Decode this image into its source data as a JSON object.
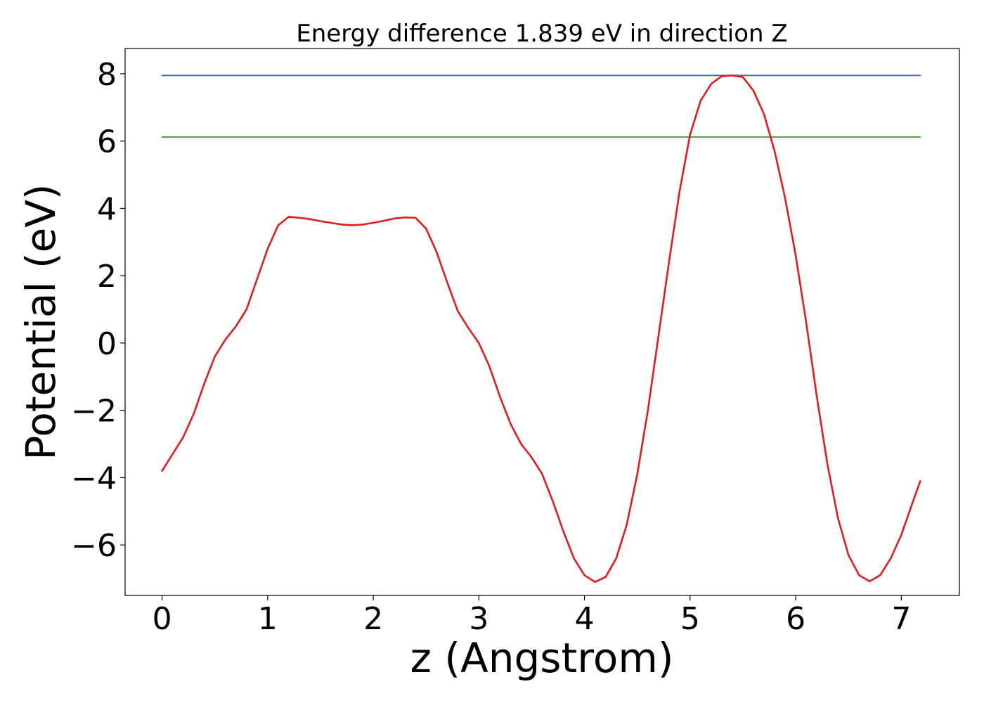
{
  "chart_data": {
    "type": "line",
    "title": "Energy difference 1.839 eV in direction Z",
    "xlabel": "z (Angstrom)",
    "ylabel": "Potential (eV)",
    "xlim": [
      -0.35,
      7.55
    ],
    "ylim": [
      -7.5,
      8.75
    ],
    "xticks": [
      0,
      1,
      2,
      3,
      4,
      5,
      6,
      7
    ],
    "xtick_labels": [
      "0",
      "1",
      "2",
      "3",
      "4",
      "5",
      "6",
      "7"
    ],
    "yticks": [
      -6,
      -4,
      -2,
      0,
      2,
      4,
      6,
      8
    ],
    "ytick_labels": [
      "−6",
      "−4",
      "−2",
      "0",
      "2",
      "4",
      "6",
      "8"
    ],
    "grid": false,
    "legend": "none",
    "series": [
      {
        "color": "#1f77b4",
        "points": [
          [
            0,
            7.95
          ],
          [
            7.18,
            7.95
          ]
        ]
      },
      {
        "color": "#2ca02c",
        "points": [
          [
            0,
            6.12
          ],
          [
            7.18,
            6.12
          ]
        ]
      },
      {
        "color": "#e41a1c",
        "points": [
          [
            0.0,
            -3.8
          ],
          [
            0.1,
            -3.3
          ],
          [
            0.2,
            -2.8
          ],
          [
            0.3,
            -2.1
          ],
          [
            0.4,
            -1.2
          ],
          [
            0.5,
            -0.4
          ],
          [
            0.6,
            0.1
          ],
          [
            0.7,
            0.5
          ],
          [
            0.8,
            1.0
          ],
          [
            0.9,
            1.9
          ],
          [
            1.0,
            2.8
          ],
          [
            1.1,
            3.5
          ],
          [
            1.2,
            3.75
          ],
          [
            1.3,
            3.72
          ],
          [
            1.4,
            3.68
          ],
          [
            1.5,
            3.62
          ],
          [
            1.6,
            3.57
          ],
          [
            1.7,
            3.52
          ],
          [
            1.8,
            3.5
          ],
          [
            1.9,
            3.52
          ],
          [
            2.0,
            3.57
          ],
          [
            2.1,
            3.63
          ],
          [
            2.2,
            3.7
          ],
          [
            2.3,
            3.73
          ],
          [
            2.4,
            3.72
          ],
          [
            2.5,
            3.4
          ],
          [
            2.6,
            2.7
          ],
          [
            2.7,
            1.8
          ],
          [
            2.8,
            0.95
          ],
          [
            2.9,
            0.45
          ],
          [
            3.0,
            0.0
          ],
          [
            3.1,
            -0.7
          ],
          [
            3.2,
            -1.6
          ],
          [
            3.3,
            -2.4
          ],
          [
            3.4,
            -3.0
          ],
          [
            3.5,
            -3.4
          ],
          [
            3.6,
            -3.9
          ],
          [
            3.7,
            -4.7
          ],
          [
            3.8,
            -5.6
          ],
          [
            3.9,
            -6.4
          ],
          [
            4.0,
            -6.9
          ],
          [
            4.1,
            -7.1
          ],
          [
            4.2,
            -6.95
          ],
          [
            4.3,
            -6.4
          ],
          [
            4.4,
            -5.4
          ],
          [
            4.5,
            -3.9
          ],
          [
            4.6,
            -2.0
          ],
          [
            4.7,
            0.2
          ],
          [
            4.8,
            2.4
          ],
          [
            4.9,
            4.5
          ],
          [
            5.0,
            6.2
          ],
          [
            5.1,
            7.2
          ],
          [
            5.2,
            7.7
          ],
          [
            5.3,
            7.93
          ],
          [
            5.4,
            7.95
          ],
          [
            5.5,
            7.9
          ],
          [
            5.6,
            7.5
          ],
          [
            5.7,
            6.8
          ],
          [
            5.8,
            5.7
          ],
          [
            5.9,
            4.3
          ],
          [
            6.0,
            2.6
          ],
          [
            6.1,
            0.6
          ],
          [
            6.2,
            -1.6
          ],
          [
            6.3,
            -3.6
          ],
          [
            6.4,
            -5.2
          ],
          [
            6.5,
            -6.3
          ],
          [
            6.6,
            -6.9
          ],
          [
            6.7,
            -7.08
          ],
          [
            6.8,
            -6.9
          ],
          [
            6.9,
            -6.4
          ],
          [
            7.0,
            -5.7
          ],
          [
            7.1,
            -4.8
          ],
          [
            7.18,
            -4.1
          ]
        ]
      }
    ]
  }
}
